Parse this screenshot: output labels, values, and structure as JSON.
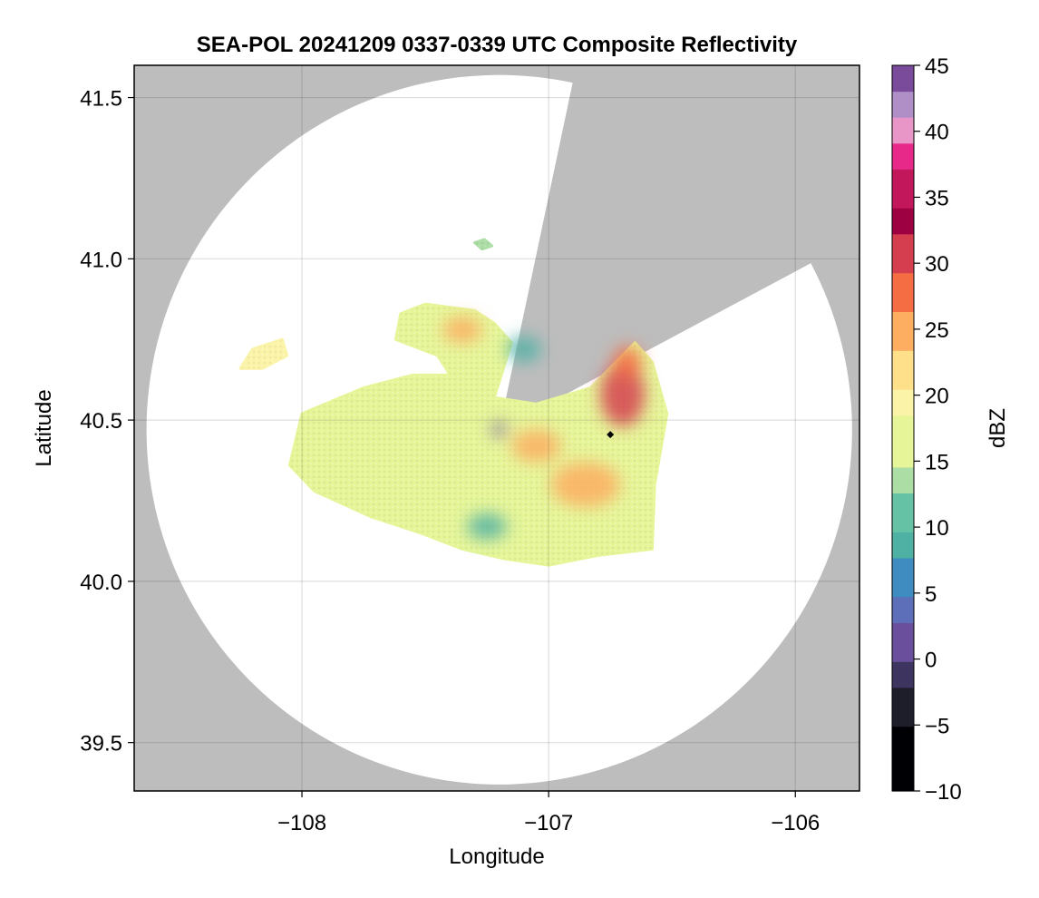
{
  "chart_data": {
    "type": "heatmap",
    "title": "SEA-POL 20241209 0337-0339 UTC Composite Reflectivity",
    "xlabel": "Longitude",
    "ylabel": "Latitude",
    "xlim": [
      -108.68,
      -105.74
    ],
    "ylim": [
      39.35,
      41.6
    ],
    "x_ticks": [
      -108,
      -107,
      -106
    ],
    "x_tick_labels": [
      "−108",
      "−107",
      "−106"
    ],
    "y_ticks": [
      39.5,
      40.0,
      40.5,
      41.0,
      41.5
    ],
    "y_tick_labels": [
      "39.5",
      "40.0",
      "40.5",
      "41.0",
      "41.5"
    ],
    "grid": true,
    "colorbar": {
      "label": "dBZ",
      "range": [
        -10,
        45
      ],
      "ticks": [
        -10,
        -5,
        0,
        5,
        10,
        15,
        20,
        25,
        30,
        35,
        40,
        45
      ],
      "tick_labels": [
        "−10",
        "−5",
        "0",
        "5",
        "10",
        "15",
        "20",
        "25",
        "30",
        "35",
        "40",
        "45"
      ],
      "colormap": "spectral (reversed)",
      "stops": [
        {
          "v": -10,
          "c": "#000004"
        },
        {
          "v": -5,
          "c": "#1e1e2a"
        },
        {
          "v": -2,
          "c": "#3d3560"
        },
        {
          "v": 0,
          "c": "#6a4f9c"
        },
        {
          "v": 3,
          "c": "#5d6fb8"
        },
        {
          "v": 5,
          "c": "#3f8cc0"
        },
        {
          "v": 8,
          "c": "#4fb0a4"
        },
        {
          "v": 10,
          "c": "#66c2a5"
        },
        {
          "v": 13,
          "c": "#abdda4"
        },
        {
          "v": 15,
          "c": "#e6f598"
        },
        {
          "v": 18,
          "c": "#fbf4a8"
        },
        {
          "v": 20,
          "c": "#fee08b"
        },
        {
          "v": 23,
          "c": "#fdae61"
        },
        {
          "v": 26,
          "c": "#f46d43"
        },
        {
          "v": 29,
          "c": "#d53e4f"
        },
        {
          "v": 32,
          "c": "#9e0142"
        },
        {
          "v": 34,
          "c": "#c2185b"
        },
        {
          "v": 37,
          "c": "#e7298a"
        },
        {
          "v": 39,
          "c": "#e896c7"
        },
        {
          "v": 41,
          "c": "#b08fc7"
        },
        {
          "v": 43,
          "c": "#7a4b9a"
        },
        {
          "v": 45,
          "c": "#3f0a4f"
        }
      ]
    },
    "radar": {
      "center_lon": -107.2,
      "center_lat": 40.47,
      "range_lat_deg": 1.1,
      "range_lon_deg": 1.43,
      "blocked_sector_azimuth_deg": [
        12,
        62
      ],
      "marker_lon": -106.75,
      "marker_lat": 40.455
    },
    "echo_regions": [
      {
        "name": "main",
        "outline": [
          [
            -108.05,
            40.36
          ],
          [
            -108.0,
            40.52
          ],
          [
            -107.75,
            40.6
          ],
          [
            -107.55,
            40.64
          ],
          [
            -107.4,
            40.64
          ],
          [
            -107.45,
            40.7
          ],
          [
            -107.62,
            40.75
          ],
          [
            -107.6,
            40.83
          ],
          [
            -107.5,
            40.86
          ],
          [
            -107.3,
            40.84
          ],
          [
            -107.22,
            40.8
          ],
          [
            -107.15,
            40.74
          ],
          [
            -107.22,
            40.57
          ],
          [
            -107.05,
            40.55
          ],
          [
            -106.83,
            40.6
          ],
          [
            -106.65,
            40.74
          ],
          [
            -106.58,
            40.68
          ],
          [
            -106.52,
            40.52
          ],
          [
            -106.57,
            40.3
          ],
          [
            -106.58,
            40.1
          ],
          [
            -106.8,
            40.08
          ],
          [
            -107.0,
            40.05
          ],
          [
            -107.18,
            40.07
          ],
          [
            -107.35,
            40.1
          ],
          [
            -107.52,
            40.15
          ],
          [
            -107.72,
            40.2
          ],
          [
            -107.95,
            40.28
          ]
        ],
        "value": 17
      },
      {
        "name": "west-cluster",
        "outline": [
          [
            -108.25,
            40.66
          ],
          [
            -108.2,
            40.72
          ],
          [
            -108.08,
            40.75
          ],
          [
            -108.06,
            40.7
          ],
          [
            -108.16,
            40.66
          ]
        ],
        "value": 20
      },
      {
        "name": "north-cells",
        "outline": [
          [
            -107.3,
            41.05
          ],
          [
            -107.26,
            41.06
          ],
          [
            -107.23,
            41.04
          ],
          [
            -107.27,
            41.03
          ]
        ],
        "value": 14
      }
    ],
    "echo_cores": [
      {
        "lon": -107.35,
        "lat": 40.78,
        "value": 26,
        "spread_lon": 0.08,
        "spread_lat": 0.04
      },
      {
        "lon": -106.7,
        "lat": 40.58,
        "value": 30,
        "spread_lon": 0.09,
        "spread_lat": 0.1
      },
      {
        "lon": -106.68,
        "lat": 40.68,
        "value": 29,
        "spread_lon": 0.06,
        "spread_lat": 0.05
      },
      {
        "lon": -106.85,
        "lat": 40.3,
        "value": 25,
        "spread_lon": 0.14,
        "spread_lat": 0.07
      },
      {
        "lon": -107.05,
        "lat": 40.42,
        "value": 24,
        "spread_lon": 0.1,
        "spread_lat": 0.05
      },
      {
        "lon": -107.1,
        "lat": 40.72,
        "value": 10,
        "spread_lon": 0.07,
        "spread_lat": 0.04
      },
      {
        "lon": -107.25,
        "lat": 40.17,
        "value": 10,
        "spread_lon": 0.08,
        "spread_lat": 0.04
      },
      {
        "lon": -107.2,
        "lat": 40.47,
        "value": 1,
        "spread_lon": 0.03,
        "spread_lat": 0.02
      }
    ]
  }
}
